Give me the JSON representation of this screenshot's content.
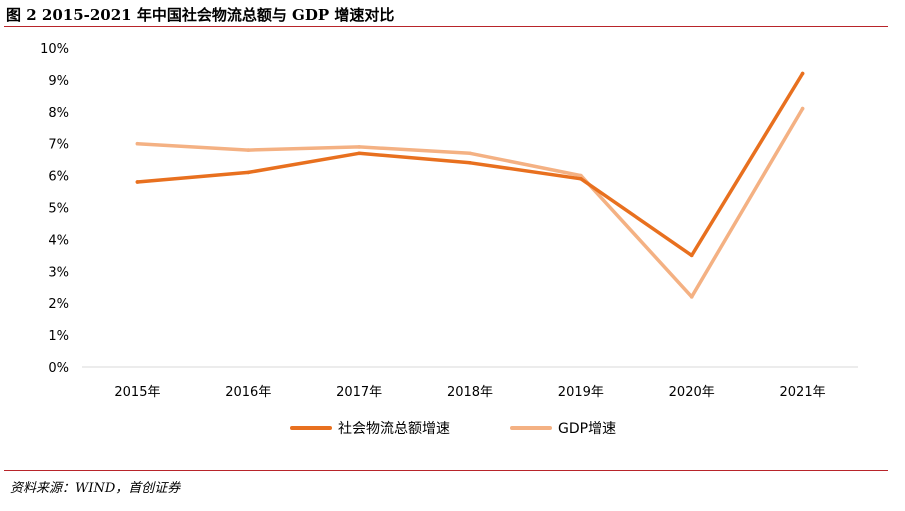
{
  "title": "图 2 2015-2021 年中国社会物流总额与 GDP 增速对比",
  "source": "资料来源：WIND，首创证券",
  "colors": {
    "series_0": "#e8701f",
    "series_1": "#f4b183",
    "rule": "#b8242a",
    "axis": "#d9d9d9"
  },
  "chart_data": {
    "type": "line",
    "categories": [
      "2015年",
      "2016年",
      "2017年",
      "2018年",
      "2019年",
      "2020年",
      "2021年"
    ],
    "series": [
      {
        "name": "社会物流总额增速",
        "values": [
          5.8,
          6.1,
          6.7,
          6.4,
          5.9,
          3.5,
          9.2
        ]
      },
      {
        "name": "GDP增速",
        "values": [
          7.0,
          6.8,
          6.9,
          6.7,
          6.0,
          2.2,
          8.1
        ]
      }
    ],
    "ylim": [
      0,
      10
    ],
    "yticks": [
      "0%",
      "1%",
      "2%",
      "3%",
      "4%",
      "5%",
      "6%",
      "7%",
      "8%",
      "9%",
      "10%"
    ],
    "legend_position": "bottom",
    "grid": false
  }
}
